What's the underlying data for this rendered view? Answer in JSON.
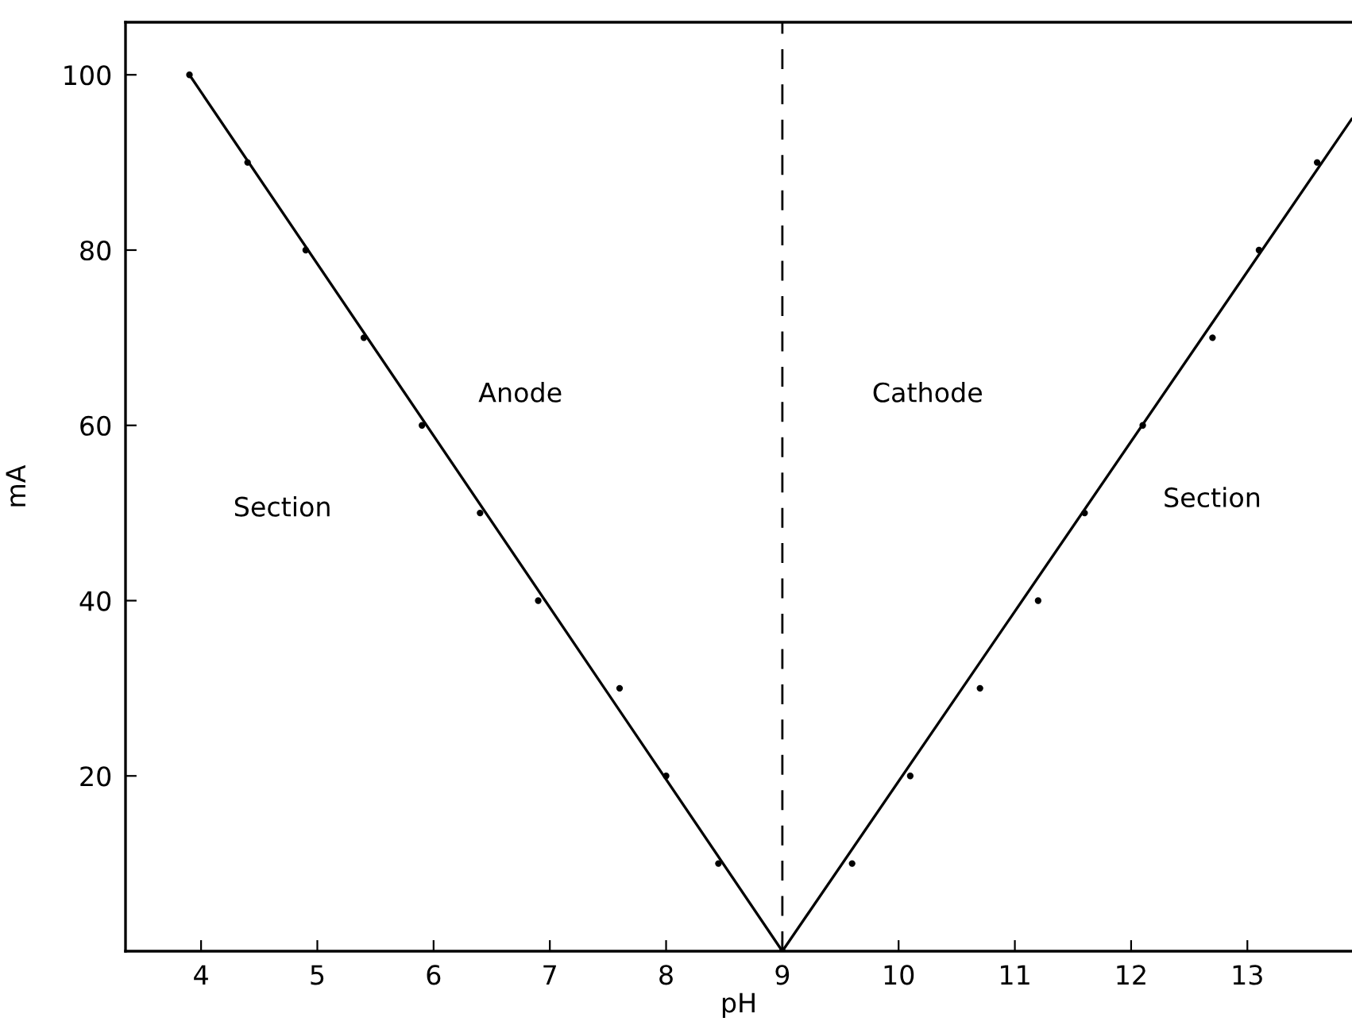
{
  "chart_data": {
    "type": "scatter",
    "xlabel": "pH",
    "ylabel": "mA",
    "series": [
      {
        "color": "#000000",
        "marker": "circle",
        "x": [
          3.9,
          4.4,
          4.9,
          5.4,
          5.9,
          6.4,
          6.9,
          7.6,
          8.0,
          8.45,
          9.0
        ],
        "values": [
          100,
          90,
          80,
          70,
          60,
          50,
          40,
          30,
          20,
          10,
          0
        ]
      },
      {
        "color": "#000000",
        "marker": "circle",
        "x": [
          9.6,
          10.1,
          10.7,
          11.2,
          11.6,
          12.1,
          12.7,
          13.1,
          13.6
        ],
        "values": [
          10,
          20,
          30,
          40,
          50,
          60,
          70,
          80,
          90
        ]
      },
      {
        "type": "line",
        "color": "#000000",
        "marker": "none",
        "line_style": "solid",
        "x": [
          3.9,
          9.0
        ],
        "values": [
          100,
          0
        ]
      },
      {
        "type": "line",
        "color": "#000000",
        "marker": "none",
        "line_style": "solid",
        "x": [
          9.0,
          13.9
        ],
        "values": [
          0,
          95
        ]
      }
    ],
    "ref_lines": [
      {
        "axis": "x",
        "value": 9,
        "color": "#000000",
        "line_style": "dashed"
      }
    ],
    "annotations": [
      "Anode",
      "Cathode",
      "Section",
      "Section"
    ],
    "xlim": [
      3.35,
      13.9
    ],
    "ylim": [
      0,
      106
    ],
    "xticks": [
      4,
      5,
      6,
      7,
      8,
      9,
      10,
      11,
      12,
      13
    ],
    "yticks": [
      20,
      40,
      60,
      80,
      100
    ],
    "grid": false
  }
}
